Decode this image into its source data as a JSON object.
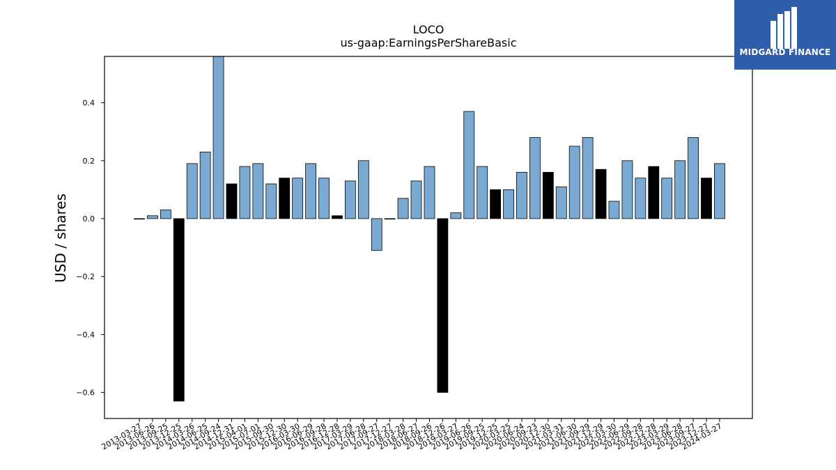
{
  "chart_data": {
    "type": "bar",
    "title": "LOCO",
    "subtitle": "us-gaap:EarningsPerShareBasic",
    "ylabel": "USD / shares",
    "xlabel": "",
    "ylim": [
      -0.69,
      0.56
    ],
    "yticks": [
      -0.6,
      -0.4,
      -0.2,
      0.0,
      0.2,
      0.4
    ],
    "ytick_labels": [
      "−0.6",
      "−0.4",
      "−0.2",
      "0.0",
      "0.2",
      "0.4"
    ],
    "grid": false,
    "colors": {
      "quarterly": "#7aaad2",
      "annual": "#000000",
      "edge": "#000000"
    },
    "categories": [
      "2013-03-27",
      "2013-06-26",
      "2013-09-25",
      "2013-12-25",
      "2014-03-26",
      "2014-06-25",
      "2014-09-24",
      "2014-12-31",
      "2015-04-01",
      "2015-07-01",
      "2015-09-30",
      "2015-12-30",
      "2016-03-30",
      "2016-06-29",
      "2016-09-28",
      "2016-12-28",
      "2017-03-29",
      "2017-06-28",
      "2017-09-27",
      "2017-12-27",
      "2018-03-28",
      "2018-06-27",
      "2018-09-26",
      "2018-12-26",
      "2019-03-27",
      "2019-06-26",
      "2019-09-25",
      "2019-12-25",
      "2020-03-25",
      "2020-06-24",
      "2020-09-23",
      "2020-12-30",
      "2021-03-31",
      "2021-06-30",
      "2021-09-29",
      "2021-12-29",
      "2022-03-30",
      "2022-06-29",
      "2022-09-28",
      "2022-12-28",
      "2023-03-29",
      "2023-06-28",
      "2023-09-27",
      "2023-12-27",
      "2024-03-27"
    ],
    "values": [
      0.0,
      0.01,
      0.03,
      -0.63,
      0.19,
      0.23,
      0.57,
      0.12,
      0.18,
      0.19,
      0.12,
      0.14,
      0.14,
      0.19,
      0.14,
      0.01,
      0.13,
      0.2,
      -0.11,
      0.0,
      0.07,
      0.13,
      0.18,
      -0.6,
      0.02,
      0.37,
      0.18,
      0.1,
      0.1,
      0.16,
      0.28,
      0.16,
      0.11,
      0.25,
      0.28,
      0.17,
      0.06,
      0.2,
      0.14,
      0.18,
      0.14,
      0.2,
      0.28,
      0.14,
      0.19
    ],
    "annual": [
      false,
      false,
      false,
      true,
      false,
      false,
      false,
      true,
      false,
      false,
      false,
      true,
      false,
      false,
      false,
      true,
      false,
      false,
      false,
      true,
      false,
      false,
      false,
      true,
      false,
      false,
      false,
      true,
      false,
      false,
      false,
      true,
      false,
      false,
      false,
      true,
      false,
      false,
      false,
      true,
      false,
      false,
      false,
      true,
      false
    ]
  },
  "logo": {
    "text": "MIDGARD FINANCE",
    "bg_color": "#2f5eaa"
  }
}
